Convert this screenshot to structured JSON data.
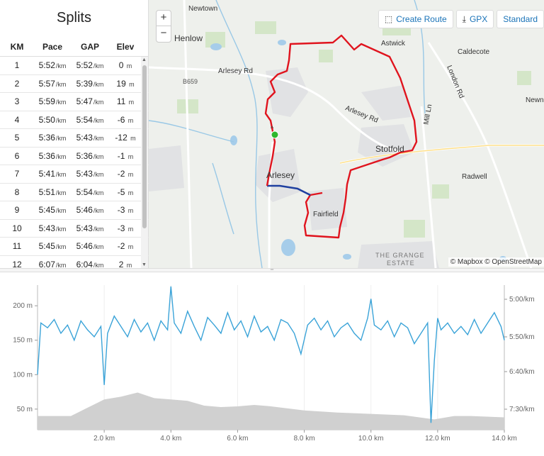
{
  "splits": {
    "title": "Splits",
    "headers": {
      "km": "KM",
      "pace": "Pace",
      "gap": "GAP",
      "elev": "Elev"
    },
    "pace_unit": "/km",
    "elev_unit": "m",
    "rows": [
      {
        "km": "1",
        "pace": "5:52",
        "gap": "5:52",
        "elev": "0"
      },
      {
        "km": "2",
        "pace": "5:57",
        "gap": "5:39",
        "elev": "19"
      },
      {
        "km": "3",
        "pace": "5:59",
        "gap": "5:47",
        "elev": "11"
      },
      {
        "km": "4",
        "pace": "5:50",
        "gap": "5:54",
        "elev": "-6"
      },
      {
        "km": "5",
        "pace": "5:36",
        "gap": "5:43",
        "elev": "-12"
      },
      {
        "km": "6",
        "pace": "5:36",
        "gap": "5:36",
        "elev": "-1"
      },
      {
        "km": "7",
        "pace": "5:41",
        "gap": "5:43",
        "elev": "-2"
      },
      {
        "km": "8",
        "pace": "5:51",
        "gap": "5:54",
        "elev": "-5"
      },
      {
        "km": "9",
        "pace": "5:45",
        "gap": "5:46",
        "elev": "-3"
      },
      {
        "km": "10",
        "pace": "5:43",
        "gap": "5:43",
        "elev": "-3"
      },
      {
        "km": "11",
        "pace": "5:45",
        "gap": "5:46",
        "elev": "-2"
      },
      {
        "km": "12",
        "pace": "6:07",
        "gap": "6:04",
        "elev": "2"
      }
    ]
  },
  "map": {
    "zoom_in": "+",
    "zoom_out": "−",
    "create_route": "Create Route",
    "gpx": "GPX",
    "style": "Standard",
    "attribution": "© Mapbox © OpenStreetMap",
    "labels": {
      "newtown": "Newtown",
      "henlow": "Henlow",
      "arlesey_rd_1": "Arlesey Rd",
      "arlesey_rd_2": "Arlesey Rd",
      "astwick": "Astwick",
      "caldecote": "Caldecote",
      "london_rd": "London Rd",
      "mill_ln": "Mill Ln",
      "newnham": "Newnh",
      "stotfold": "Stotfold",
      "arlesey": "Arlesey",
      "radwell": "Radwell",
      "fairfield": "Fairfield",
      "grange_1": "THE GRANGE",
      "grange_2": "ESTATE",
      "b659": "B659"
    },
    "route_color": "#e0141e",
    "highlight_color": "#1f3fa0",
    "start_color": "#2db82d"
  },
  "chart_data": {
    "type": "line",
    "x_unit": "km",
    "xlim": [
      0,
      14.0
    ],
    "x_ticks": [
      "2.0 km",
      "4.0 km",
      "6.0 km",
      "8.0 km",
      "10.0 km",
      "12.0 km",
      "14.0 km"
    ],
    "left_axis": {
      "ticks": [
        "50 m",
        "100 m",
        "150 m",
        "200 m"
      ],
      "ylim": [
        20,
        230
      ]
    },
    "right_axis": {
      "ticks": [
        "5:00/km",
        "5:50/km",
        "6:40/km",
        "7:30/km"
      ]
    },
    "series": [
      {
        "kind": "pace",
        "color": "#3aa3d8",
        "x": [
          0,
          0.1,
          0.3,
          0.5,
          0.7,
          0.9,
          1.1,
          1.3,
          1.5,
          1.7,
          1.9,
          2.0,
          2.1,
          2.3,
          2.5,
          2.7,
          2.9,
          3.1,
          3.3,
          3.5,
          3.7,
          3.9,
          4.0,
          4.1,
          4.3,
          4.5,
          4.7,
          4.9,
          5.1,
          5.3,
          5.5,
          5.7,
          5.9,
          6.1,
          6.3,
          6.5,
          6.7,
          6.9,
          7.1,
          7.3,
          7.5,
          7.7,
          7.9,
          8.1,
          8.3,
          8.5,
          8.7,
          8.9,
          9.1,
          9.3,
          9.5,
          9.7,
          9.9,
          10.0,
          10.1,
          10.3,
          10.5,
          10.7,
          10.9,
          11.1,
          11.3,
          11.5,
          11.7,
          11.8,
          11.9,
          12.0,
          12.1,
          12.3,
          12.5,
          12.7,
          12.9,
          13.1,
          13.3,
          13.5,
          13.7,
          13.9,
          14.0
        ],
        "y": [
          100,
          175,
          168,
          180,
          160,
          172,
          150,
          178,
          165,
          155,
          170,
          85,
          160,
          185,
          170,
          155,
          180,
          162,
          175,
          150,
          178,
          165,
          228,
          175,
          160,
          192,
          170,
          150,
          183,
          172,
          160,
          190,
          165,
          178,
          155,
          185,
          162,
          170,
          150,
          180,
          175,
          160,
          130,
          172,
          182,
          165,
          178,
          155,
          168,
          175,
          160,
          150,
          182,
          210,
          172,
          165,
          178,
          155,
          175,
          168,
          145,
          160,
          175,
          30,
          120,
          182,
          165,
          175,
          160,
          170,
          158,
          180,
          160,
          175,
          190,
          170,
          150
        ]
      },
      {
        "kind": "elevation",
        "color": "#d0d0d0",
        "x": [
          0,
          1.0,
          1.5,
          2.0,
          2.5,
          3.0,
          3.5,
          4.0,
          4.5,
          5.0,
          5.5,
          6.0,
          6.5,
          7.0,
          8.0,
          9.0,
          10.0,
          11.0,
          11.9,
          12.5,
          13.0,
          14.0
        ],
        "y": [
          40,
          40,
          52,
          64,
          68,
          74,
          66,
          64,
          62,
          55,
          53,
          54,
          56,
          54,
          48,
          45,
          43,
          41,
          35,
          40,
          40,
          38
        ]
      }
    ]
  }
}
